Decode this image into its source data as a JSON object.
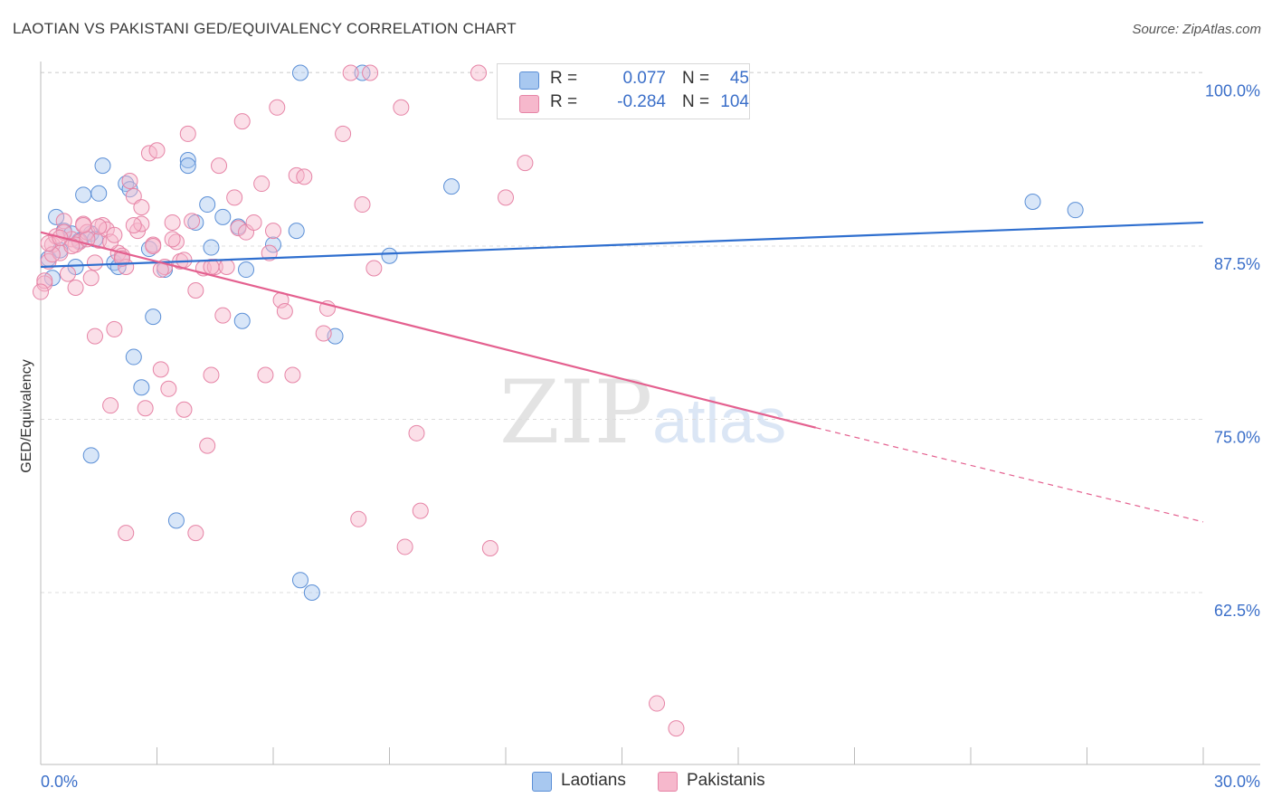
{
  "title": "LAOTIAN VS PAKISTANI GED/EQUIVALENCY CORRELATION CHART",
  "source": "Source: ZipAtlas.com",
  "watermark": {
    "zip": "ZIP",
    "atlas": "atlas"
  },
  "legend": {
    "laotians": {
      "r_label": "R =",
      "r_value": "0.077",
      "n_label": "N =",
      "n_value": "45"
    },
    "pakistanis": {
      "r_label": "R =",
      "r_value": "-0.284",
      "n_label": "N =",
      "n_value": "104"
    }
  },
  "bottom_legend": {
    "laotians": "Laotians",
    "pakistanis": "Pakistanis"
  },
  "colors": {
    "laotians_fill": "#a8c8f0",
    "laotians_stroke": "#5b8fd6",
    "laotians_line": "#2f6fcf",
    "pakistanis_fill": "#f6b8cc",
    "pakistanis_stroke": "#e684a6",
    "pakistanis_line": "#e4608f",
    "grid": "#dcdcdc",
    "axis_label": "#3b6fc9"
  },
  "chart_data": {
    "type": "scatter",
    "title": "LAOTIAN VS PAKISTANI GED/EQUIVALENCY CORRELATION CHART",
    "xlabel": "",
    "ylabel": "GED/Equivalency",
    "xlim": [
      0,
      30
    ],
    "ylim": [
      50,
      101
    ],
    "x_tick_labels": [
      "0.0%",
      "30.0%"
    ],
    "y_ticks": [
      62.5,
      75.0,
      87.5,
      100.0
    ],
    "y_tick_labels": [
      "62.5%",
      "75.0%",
      "87.5%",
      "100.0%"
    ],
    "grid": true,
    "series": [
      {
        "name": "Laotians",
        "r": 0.077,
        "n": 45,
        "trend": {
          "x0": 0,
          "y0": 86.0,
          "x1": 30,
          "y1": 89.2
        },
        "points": [
          [
            0.2,
            86.6
          ],
          [
            0.3,
            85.2
          ],
          [
            0.4,
            89.6
          ],
          [
            0.6,
            88.6
          ],
          [
            0.9,
            86.0
          ],
          [
            1.1,
            91.2
          ],
          [
            1.3,
            88.4
          ],
          [
            1.5,
            91.3
          ],
          [
            1.6,
            93.3
          ],
          [
            1.9,
            86.3
          ],
          [
            2.2,
            92.0
          ],
          [
            2.3,
            91.6
          ],
          [
            2.4,
            79.5
          ],
          [
            2.6,
            77.3
          ],
          [
            2.8,
            87.3
          ],
          [
            2.9,
            82.4
          ],
          [
            3.2,
            85.8
          ],
          [
            3.5,
            67.7
          ],
          [
            3.8,
            93.7
          ],
          [
            3.8,
            93.3
          ],
          [
            4.0,
            89.2
          ],
          [
            4.3,
            90.5
          ],
          [
            4.4,
            87.4
          ],
          [
            4.7,
            89.6
          ],
          [
            5.1,
            88.9
          ],
          [
            5.2,
            82.1
          ],
          [
            5.3,
            85.8
          ],
          [
            6.0,
            87.6
          ],
          [
            6.6,
            88.6
          ],
          [
            6.7,
            63.4
          ],
          [
            6.7,
            100.0
          ],
          [
            7.0,
            62.5
          ],
          [
            7.6,
            81.0
          ],
          [
            8.3,
            100.0
          ],
          [
            9.0,
            86.8
          ],
          [
            10.6,
            91.8
          ],
          [
            1.3,
            72.4
          ],
          [
            1.4,
            88.0
          ],
          [
            2.0,
            86.0
          ],
          [
            0.5,
            87.2
          ],
          [
            0.8,
            88.4
          ],
          [
            1.0,
            87.9
          ],
          [
            2.1,
            86.6
          ],
          [
            25.6,
            90.7
          ],
          [
            26.7,
            90.1
          ]
        ]
      },
      {
        "name": "Pakistanis",
        "r": -0.284,
        "n": 104,
        "trend": {
          "x0": 0,
          "y0": 88.5,
          "x1": 20,
          "y1": 74.4,
          "dash_x1": 30,
          "dash_y1": 67.6
        },
        "points": [
          [
            0.1,
            84.8
          ],
          [
            0.2,
            86.4
          ],
          [
            0.3,
            87.6
          ],
          [
            0.4,
            88.2
          ],
          [
            0.5,
            87.0
          ],
          [
            0.6,
            89.3
          ],
          [
            0.7,
            85.5
          ],
          [
            0.8,
            88.0
          ],
          [
            0.9,
            84.5
          ],
          [
            1.0,
            87.8
          ],
          [
            1.1,
            89.1
          ],
          [
            1.2,
            88.5
          ],
          [
            1.3,
            85.2
          ],
          [
            1.4,
            86.3
          ],
          [
            1.5,
            87.9
          ],
          [
            1.6,
            89.0
          ],
          [
            1.7,
            88.7
          ],
          [
            1.8,
            76.0
          ],
          [
            1.9,
            81.5
          ],
          [
            2.0,
            87.0
          ],
          [
            2.1,
            86.8
          ],
          [
            2.2,
            86.0
          ],
          [
            2.3,
            92.2
          ],
          [
            2.4,
            91.1
          ],
          [
            2.5,
            88.6
          ],
          [
            2.6,
            89.1
          ],
          [
            2.7,
            75.8
          ],
          [
            2.8,
            94.2
          ],
          [
            2.9,
            87.6
          ],
          [
            3.0,
            94.4
          ],
          [
            3.1,
            78.6
          ],
          [
            3.2,
            86.0
          ],
          [
            3.3,
            77.2
          ],
          [
            3.4,
            89.2
          ],
          [
            3.5,
            87.8
          ],
          [
            3.6,
            86.4
          ],
          [
            3.7,
            75.7
          ],
          [
            3.8,
            95.6
          ],
          [
            3.9,
            89.3
          ],
          [
            4.0,
            66.8
          ],
          [
            4.2,
            85.9
          ],
          [
            4.3,
            73.1
          ],
          [
            4.4,
            78.2
          ],
          [
            4.5,
            86.0
          ],
          [
            4.6,
            93.3
          ],
          [
            4.7,
            82.5
          ],
          [
            4.8,
            86.0
          ],
          [
            5.0,
            91.0
          ],
          [
            5.1,
            88.8
          ],
          [
            5.2,
            96.5
          ],
          [
            5.3,
            88.5
          ],
          [
            5.5,
            89.2
          ],
          [
            5.7,
            92.0
          ],
          [
            5.8,
            78.2
          ],
          [
            6.0,
            88.6
          ],
          [
            6.1,
            97.5
          ],
          [
            6.2,
            83.6
          ],
          [
            6.3,
            82.8
          ],
          [
            6.5,
            78.2
          ],
          [
            6.6,
            92.6
          ],
          [
            6.8,
            92.5
          ],
          [
            7.3,
            81.2
          ],
          [
            7.4,
            83.0
          ],
          [
            7.8,
            95.6
          ],
          [
            8.0,
            100.0
          ],
          [
            8.2,
            67.8
          ],
          [
            8.3,
            90.5
          ],
          [
            8.5,
            100.0
          ],
          [
            8.6,
            85.9
          ],
          [
            9.3,
            97.5
          ],
          [
            9.4,
            65.8
          ],
          [
            9.7,
            74.0
          ],
          [
            9.8,
            68.4
          ],
          [
            11.3,
            100.0
          ],
          [
            11.6,
            65.7
          ],
          [
            12.0,
            91.0
          ],
          [
            12.5,
            93.5
          ],
          [
            15.9,
            54.5
          ],
          [
            16.4,
            52.7
          ],
          [
            0.1,
            85.0
          ],
          [
            0.3,
            86.9
          ],
          [
            0.6,
            88.5
          ],
          [
            0.9,
            87.6
          ],
          [
            1.2,
            88.0
          ],
          [
            1.5,
            88.9
          ],
          [
            1.8,
            87.8
          ],
          [
            2.1,
            86.6
          ],
          [
            2.4,
            89.0
          ],
          [
            2.6,
            90.3
          ],
          [
            2.9,
            87.5
          ],
          [
            3.1,
            85.8
          ],
          [
            3.4,
            88.0
          ],
          [
            3.7,
            86.5
          ],
          [
            4.0,
            84.3
          ],
          [
            0.0,
            84.2
          ],
          [
            0.2,
            87.7
          ],
          [
            0.5,
            88.1
          ],
          [
            0.8,
            87.5
          ],
          [
            1.1,
            89.0
          ],
          [
            2.2,
            66.8
          ],
          [
            4.4,
            86.0
          ],
          [
            1.9,
            88.3
          ],
          [
            5.9,
            87.0
          ],
          [
            1.4,
            81.0
          ]
        ]
      }
    ]
  }
}
